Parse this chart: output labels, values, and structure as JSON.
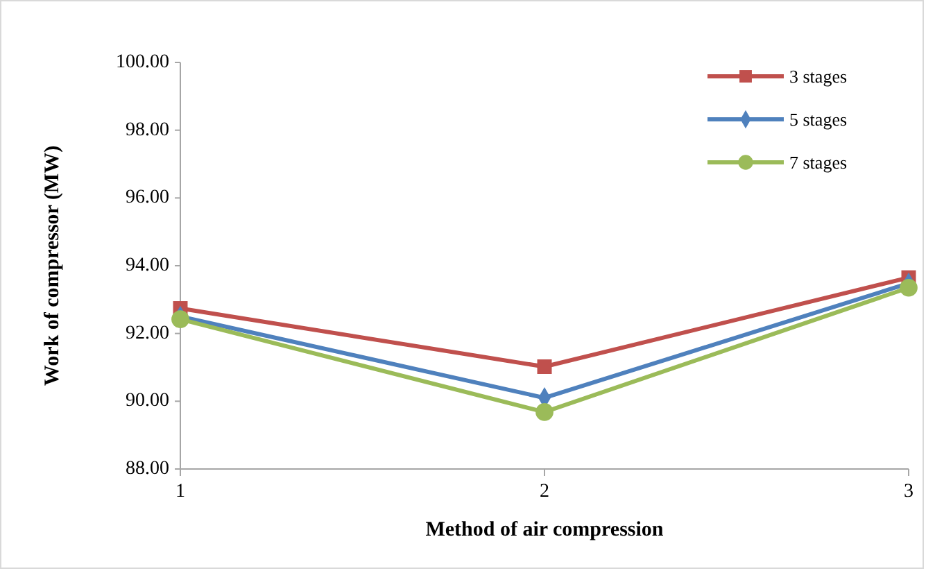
{
  "chart_data": {
    "type": "line",
    "xlabel": "Method of air compression",
    "ylabel": "Work of compressor (MW)",
    "categories": [
      "1",
      "2",
      "3"
    ],
    "ylim": [
      88,
      100
    ],
    "yticks": [
      {
        "value": 88,
        "label": "88.00"
      },
      {
        "value": 90,
        "label": "90.00"
      },
      {
        "value": 92,
        "label": "92.00"
      },
      {
        "value": 94,
        "label": "94.00"
      },
      {
        "value": 96,
        "label": "96.00"
      },
      {
        "value": 98,
        "label": "98.00"
      },
      {
        "value": 100,
        "label": "100.00"
      }
    ],
    "grid": false,
    "legend": "top right",
    "series": [
      {
        "name": "3 stages",
        "color": "#c0504d",
        "marker": "square",
        "values": [
          92.74,
          91.02,
          93.65
        ]
      },
      {
        "name": "5 stages",
        "color": "#4f81bd",
        "marker": "diamond",
        "values": [
          92.5,
          90.1,
          93.48
        ]
      },
      {
        "name": "7 stages",
        "color": "#9bbb59",
        "marker": "circle",
        "values": [
          92.42,
          89.68,
          93.35
        ]
      }
    ]
  }
}
